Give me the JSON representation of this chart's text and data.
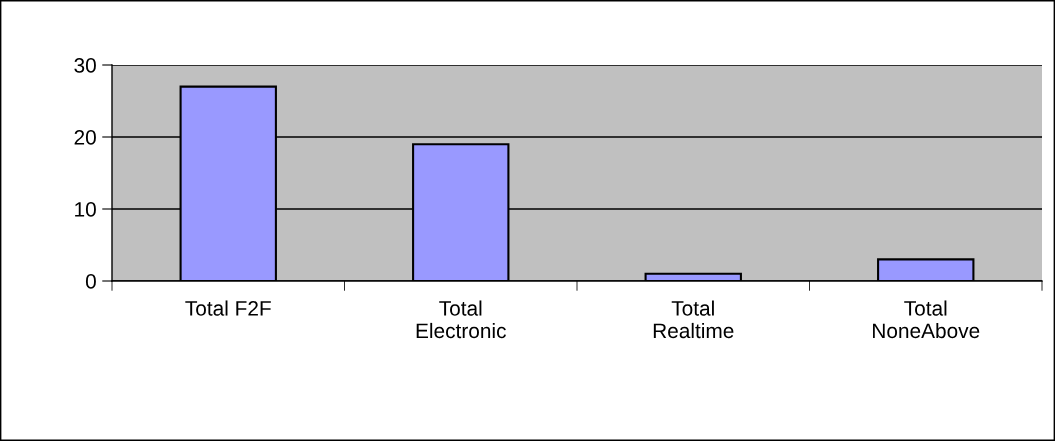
{
  "chart_data": {
    "type": "bar",
    "categories": [
      "Total F2F",
      "Total\nElectronic",
      "Total\nRealtime",
      "Total\nNoneAbove"
    ],
    "values": [
      27,
      19,
      1,
      3
    ],
    "color": "#9999ff",
    "ylim": [
      0,
      30
    ],
    "yticks": [
      0,
      10,
      20,
      30
    ],
    "grid": "y",
    "legend": false
  }
}
